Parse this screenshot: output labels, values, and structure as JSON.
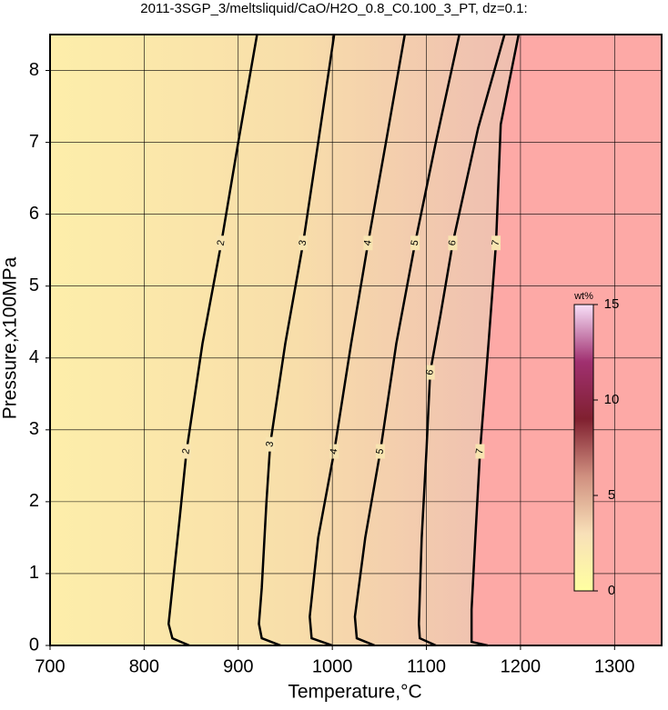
{
  "chart_data": {
    "type": "contour",
    "title": "2011-3SGP_3/meltsliquid/CaO/H2O_0.8_C0.100_3_PT, dz=0.1:",
    "x_label": "Temperature,°C",
    "y_label": "Pressure,x100MPa",
    "xlim": [
      700,
      1350
    ],
    "ylim": [
      0,
      8.5
    ],
    "xticks": [
      700,
      800,
      900,
      1000,
      1100,
      1200,
      1300
    ],
    "yticks": [
      0,
      1,
      2,
      3,
      4,
      5,
      6,
      7,
      8
    ],
    "grid": true,
    "contours": [
      {
        "level": 2,
        "x": [
          848,
          830,
          826,
          830,
          838,
          845,
          862,
          882,
          900,
          920
        ],
        "y": [
          0,
          0.1,
          0.3,
          0.8,
          1.8,
          2.7,
          4.2,
          5.6,
          7,
          8.5
        ]
      },
      {
        "level": 3,
        "x": [
          945,
          925,
          922,
          925,
          930,
          934,
          950,
          969,
          985,
          1002
        ],
        "y": [
          0,
          0.1,
          0.3,
          0.8,
          2,
          2.8,
          4.2,
          5.6,
          7,
          8.5
        ]
      },
      {
        "level": 4,
        "x": [
          1000,
          978,
          976,
          985,
          1002,
          1020,
          1038,
          1057,
          1077
        ],
        "y": [
          0,
          0.1,
          0.4,
          1.5,
          2.7,
          4.2,
          5.6,
          7,
          8.5
        ]
      },
      {
        "level": 5,
        "x": [
          1045,
          1026,
          1024,
          1035,
          1051,
          1068,
          1088,
          1110,
          1135
        ],
        "y": [
          0,
          0.1,
          0.4,
          1.5,
          2.7,
          4.2,
          5.6,
          7,
          8.5
        ]
      },
      {
        "level": 6,
        "x": [
          1110,
          1093,
          1092,
          1095,
          1100,
          1104,
          1115,
          1128,
          1155,
          1183
        ],
        "y": [
          0,
          0.1,
          0.3,
          1.5,
          2.7,
          3.8,
          4.6,
          5.6,
          7.2,
          8.5
        ]
      },
      {
        "level": 7,
        "x": [
          1165,
          1148,
          1148,
          1152,
          1157,
          1166,
          1174,
          1179,
          1198
        ],
        "y": [
          0,
          0.05,
          0.5,
          1.5,
          2.7,
          4.2,
          5.6,
          7.25,
          8.5
        ]
      }
    ],
    "colorbar": {
      "label": "wt%",
      "lim": [
        0,
        15
      ],
      "ticks": [
        0,
        5,
        10,
        15
      ]
    }
  }
}
